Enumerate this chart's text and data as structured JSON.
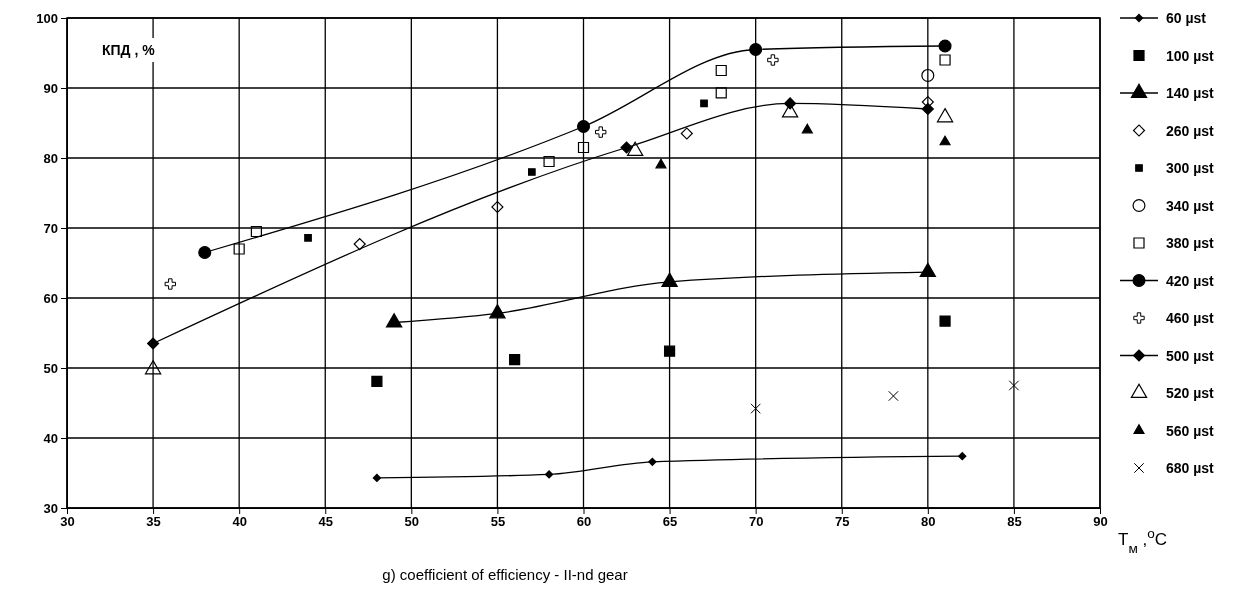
{
  "chart_data": {
    "type": "scatter",
    "title": "g) coefficient of efficiency -  II-nd gear",
    "xlabel": "T$_{м}$ ,$^{o}$C",
    "ylabel": "КПД , %",
    "xlim": [
      30,
      90
    ],
    "xticks": [
      30,
      35,
      40,
      45,
      50,
      55,
      60,
      65,
      70,
      75,
      80,
      85,
      90
    ],
    "ylim": [
      30,
      100
    ],
    "yticks": [
      30,
      40,
      50,
      60,
      70,
      80,
      90,
      100
    ],
    "grid": true,
    "legend": "right",
    "series": [
      {
        "name": "60 µst",
        "type": "line",
        "marker": "diamond-small",
        "color": "#000000",
        "x": [
          48,
          58,
          64,
          82
        ],
        "values": [
          34.3,
          34.8,
          36.6,
          37.4
        ]
      },
      {
        "name": "100 µst",
        "marker": "square",
        "color": "#000000",
        "x": [
          48,
          56,
          65,
          81
        ],
        "values": [
          48.1,
          51.2,
          52.4,
          56.7
        ]
      },
      {
        "name": "140 µst",
        "type": "line",
        "marker": "triangle",
        "color": "#000000",
        "x": [
          49,
          55,
          65,
          80
        ],
        "values": [
          56.5,
          57.8,
          62.3,
          63.7
        ]
      },
      {
        "name": "260 µst",
        "marker": "diamond-open",
        "color": "#000000",
        "x": [
          47,
          55,
          66,
          80
        ],
        "values": [
          67.7,
          73,
          83.5,
          88
        ]
      },
      {
        "name": "300 µst",
        "marker": "square-small",
        "color": "#000000",
        "x": [
          44,
          57,
          67
        ],
        "values": [
          68.6,
          78,
          87.8
        ]
      },
      {
        "name": "340 µst",
        "marker": "circle-open",
        "color": "#000000",
        "x": [
          80
        ],
        "values": [
          91.8
        ]
      },
      {
        "name": "380 µst",
        "marker": "square-open",
        "color": "#000000",
        "x": [
          40,
          41,
          58,
          60,
          68,
          68,
          81
        ],
        "values": [
          67,
          69.5,
          79.5,
          81.5,
          89.3,
          92.5,
          94
        ]
      },
      {
        "name": "420 µst",
        "type": "line",
        "marker": "circle",
        "color": "#000000",
        "x": [
          38,
          60,
          70,
          81
        ],
        "values": [
          66.5,
          84.5,
          95.5,
          96
        ]
      },
      {
        "name": "460 µst",
        "marker": "plus",
        "color": "#000000",
        "x": [
          36,
          61,
          71
        ],
        "values": [
          62,
          83.7,
          94
        ]
      },
      {
        "name": "500 µst",
        "type": "line",
        "marker": "diamond",
        "color": "#000000",
        "x": [
          35,
          62.5,
          72,
          80
        ],
        "values": [
          53.5,
          81.5,
          87.8,
          87
        ]
      },
      {
        "name": "520 µst",
        "marker": "triangle-open",
        "color": "#000000",
        "x": [
          35,
          63,
          72,
          81
        ],
        "values": [
          49.8,
          81,
          86.5,
          85.8
        ]
      },
      {
        "name": "560 µst",
        "marker": "triangle-small",
        "color": "#000000",
        "x": [
          64.5,
          73,
          81
        ],
        "values": [
          79,
          84,
          82.3
        ]
      },
      {
        "name": "680 µst",
        "marker": "cross",
        "color": "#000000",
        "x": [
          70,
          78,
          85
        ],
        "values": [
          44.2,
          46,
          47.5
        ]
      }
    ]
  }
}
